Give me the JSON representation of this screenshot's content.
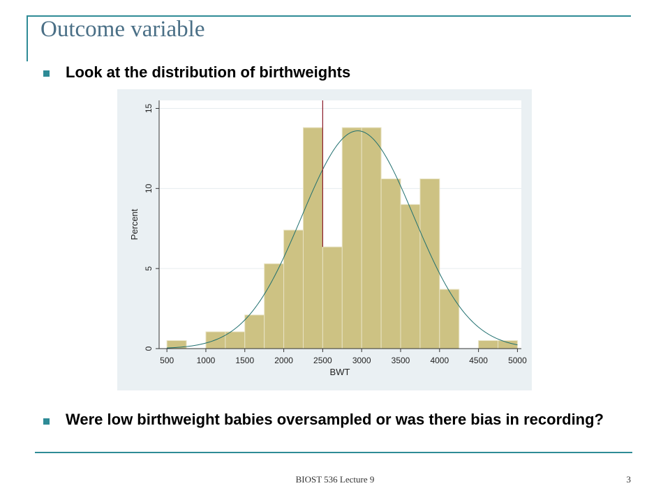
{
  "slide": {
    "title": "Outcome variable",
    "bullets": [
      "Look at the distribution of birthweights",
      "Were low birthweight babies oversampled or was there bias in recording?"
    ],
    "footer": "BIOST 536 Lecture 9",
    "page_number": "3",
    "accent_color": "#2e8b96",
    "title_color": "#4a6f86"
  },
  "chart_data": {
    "type": "bar",
    "subtype": "histogram",
    "title": "",
    "xlabel": "BWT",
    "ylabel": "Percent",
    "xlim": [
      400,
      5050
    ],
    "ylim": [
      0,
      15.5
    ],
    "x_ticks": [
      500,
      1000,
      1500,
      2000,
      2500,
      3000,
      3500,
      4000,
      4500,
      5000
    ],
    "y_ticks": [
      0,
      5,
      10,
      15
    ],
    "bin_width": 250,
    "bins": [
      {
        "start": 500,
        "value": 0.5
      },
      {
        "start": 750,
        "value": 0
      },
      {
        "start": 1000,
        "value": 1.05
      },
      {
        "start": 1250,
        "value": 1.05
      },
      {
        "start": 1500,
        "value": 2.1
      },
      {
        "start": 1750,
        "value": 5.3
      },
      {
        "start": 2000,
        "value": 7.4
      },
      {
        "start": 2250,
        "value": 13.8
      },
      {
        "start": 2500,
        "value": 6.35
      },
      {
        "start": 2750,
        "value": 13.8
      },
      {
        "start": 3000,
        "value": 13.8
      },
      {
        "start": 3250,
        "value": 10.6
      },
      {
        "start": 3500,
        "value": 9.0
      },
      {
        "start": 3750,
        "value": 10.6
      },
      {
        "start": 4000,
        "value": 3.7
      },
      {
        "start": 4250,
        "value": 0
      },
      {
        "start": 4500,
        "value": 0.5
      },
      {
        "start": 4750,
        "value": 0.5
      }
    ],
    "normal_curve": {
      "mean": 2950,
      "sd": 720,
      "peak": 13.6
    },
    "reference_line_x": 2500,
    "grid": true,
    "colors": {
      "bar_fill": "#cdc283",
      "bar_stroke": "#e8e3c4",
      "curve": "#1f6f6f",
      "reference_line": "#8b1a2a",
      "panel_bg": "#eaf0f3",
      "plot_bg": "#ffffff"
    }
  }
}
